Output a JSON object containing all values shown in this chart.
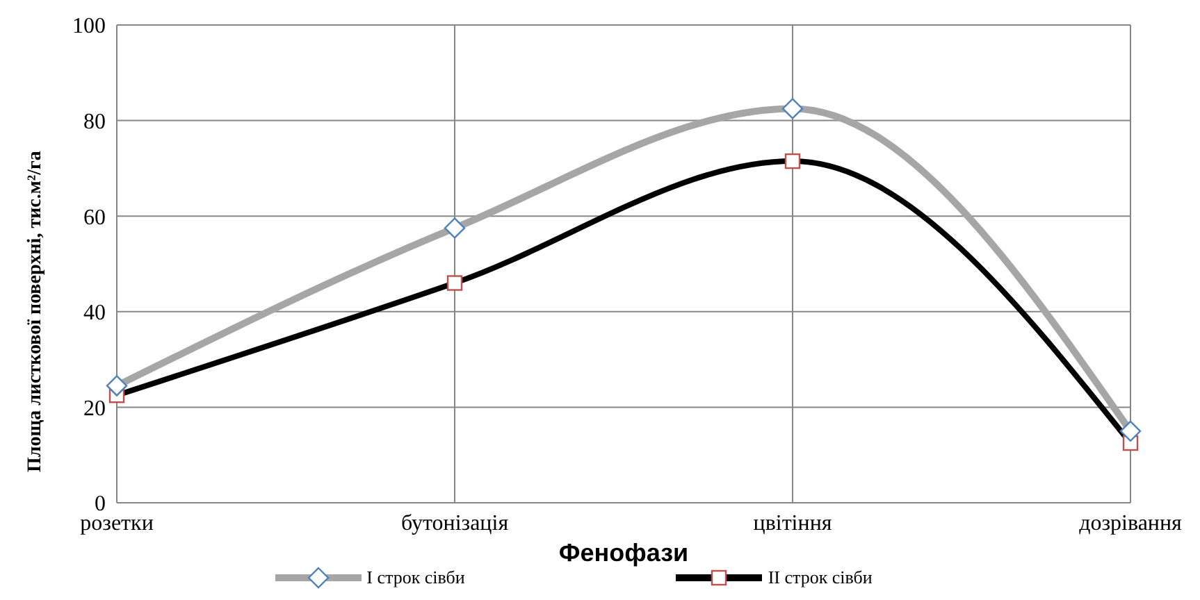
{
  "chart_data": {
    "type": "line",
    "xlabel": "Фенофази",
    "ylabel": "Площа листкової поверхні, тис.м²/га",
    "categories": [
      "розетки",
      "бутонізація",
      "цвітіння",
      "дозрівання"
    ],
    "series": [
      {
        "name": "I строк сівби",
        "color": "#a6a6a6",
        "marker": "diamond",
        "values": [
          24.5,
          57.5,
          82.5,
          15
        ]
      },
      {
        "name": "II строк сівби",
        "color": "#000000",
        "marker": "square",
        "values": [
          22.5,
          46,
          71.5,
          12.5
        ]
      }
    ],
    "ylim": [
      0,
      100
    ],
    "yticks": [
      0,
      20,
      40,
      60,
      80,
      100
    ],
    "grid": true,
    "legend": "bottom"
  }
}
